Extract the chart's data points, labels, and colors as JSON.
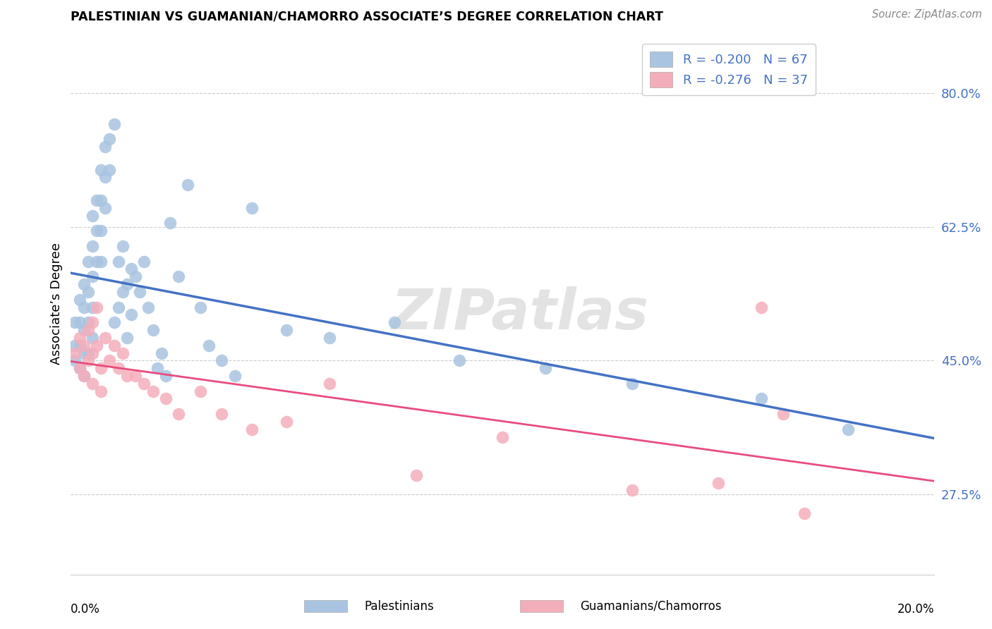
{
  "title": "PALESTINIAN VS GUAMANIAN/CHAMORRO ASSOCIATE’S DEGREE CORRELATION CHART",
  "source": "Source: ZipAtlas.com",
  "ylabel": "Associate’s Degree",
  "ytick_labels": [
    "27.5%",
    "45.0%",
    "62.5%",
    "80.0%"
  ],
  "ytick_values": [
    0.275,
    0.45,
    0.625,
    0.8
  ],
  "xmin": 0.0,
  "xmax": 0.2,
  "ymin": 0.17,
  "ymax": 0.88,
  "blue_R": -0.2,
  "blue_N": 67,
  "pink_R": -0.276,
  "pink_N": 37,
  "blue_color": "#A8C4E0",
  "pink_color": "#F4AEBB",
  "blue_line_color": "#4472C4",
  "pink_line_color": "#E84C7D",
  "tick_color": "#4472C4",
  "watermark": "ZIPatlas",
  "legend_label_blue": "Palestinians",
  "legend_label_pink": "Guamanians/Chamorros",
  "blue_x": [
    0.001,
    0.001,
    0.001,
    0.002,
    0.002,
    0.002,
    0.002,
    0.003,
    0.003,
    0.003,
    0.003,
    0.003,
    0.004,
    0.004,
    0.004,
    0.004,
    0.005,
    0.005,
    0.005,
    0.005,
    0.005,
    0.006,
    0.006,
    0.006,
    0.007,
    0.007,
    0.007,
    0.007,
    0.008,
    0.008,
    0.008,
    0.009,
    0.009,
    0.01,
    0.01,
    0.011,
    0.011,
    0.012,
    0.012,
    0.013,
    0.013,
    0.014,
    0.014,
    0.015,
    0.016,
    0.017,
    0.018,
    0.019,
    0.02,
    0.021,
    0.022,
    0.023,
    0.025,
    0.027,
    0.03,
    0.032,
    0.035,
    0.038,
    0.042,
    0.05,
    0.06,
    0.075,
    0.09,
    0.11,
    0.13,
    0.16,
    0.18
  ],
  "blue_y": [
    0.5,
    0.47,
    0.45,
    0.53,
    0.5,
    0.47,
    0.44,
    0.55,
    0.52,
    0.49,
    0.46,
    0.43,
    0.58,
    0.54,
    0.5,
    0.46,
    0.64,
    0.6,
    0.56,
    0.52,
    0.48,
    0.66,
    0.62,
    0.58,
    0.7,
    0.66,
    0.62,
    0.58,
    0.73,
    0.69,
    0.65,
    0.74,
    0.7,
    0.76,
    0.5,
    0.58,
    0.52,
    0.6,
    0.54,
    0.55,
    0.48,
    0.57,
    0.51,
    0.56,
    0.54,
    0.58,
    0.52,
    0.49,
    0.44,
    0.46,
    0.43,
    0.63,
    0.56,
    0.68,
    0.52,
    0.47,
    0.45,
    0.43,
    0.65,
    0.49,
    0.48,
    0.5,
    0.45,
    0.44,
    0.42,
    0.4,
    0.36
  ],
  "pink_x": [
    0.001,
    0.002,
    0.002,
    0.003,
    0.003,
    0.004,
    0.004,
    0.005,
    0.005,
    0.005,
    0.006,
    0.006,
    0.007,
    0.007,
    0.008,
    0.009,
    0.01,
    0.011,
    0.012,
    0.013,
    0.015,
    0.017,
    0.019,
    0.022,
    0.025,
    0.03,
    0.035,
    0.042,
    0.05,
    0.06,
    0.08,
    0.1,
    0.13,
    0.15,
    0.16,
    0.165,
    0.17
  ],
  "pink_y": [
    0.46,
    0.48,
    0.44,
    0.47,
    0.43,
    0.49,
    0.45,
    0.5,
    0.46,
    0.42,
    0.52,
    0.47,
    0.44,
    0.41,
    0.48,
    0.45,
    0.47,
    0.44,
    0.46,
    0.43,
    0.43,
    0.42,
    0.41,
    0.4,
    0.38,
    0.41,
    0.38,
    0.36,
    0.37,
    0.42,
    0.3,
    0.35,
    0.28,
    0.29,
    0.52,
    0.38,
    0.25
  ]
}
